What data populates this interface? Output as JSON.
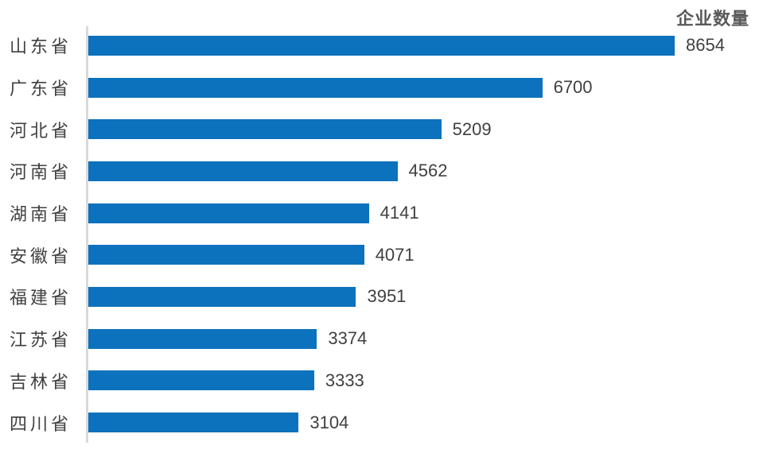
{
  "chart_data": {
    "type": "bar",
    "orientation": "horizontal",
    "title": "企业数量",
    "categories": [
      "山东省",
      "广东省",
      "河北省",
      "河南省",
      "湖南省",
      "安徽省",
      "福建省",
      "江苏省",
      "吉林省",
      "四川省"
    ],
    "values": [
      8654,
      6700,
      5209,
      4562,
      4141,
      4071,
      3951,
      3374,
      3333,
      3104
    ],
    "xlim": [
      0,
      8654
    ],
    "grid": false,
    "legend": "none",
    "data_labels": true,
    "colors": {
      "bar": "#0c72bd",
      "axis_line": "#d9d9d9",
      "category_label": "#3f3f3f",
      "value_label": "#404040",
      "title": "#595959",
      "background": "#ffffff"
    }
  }
}
